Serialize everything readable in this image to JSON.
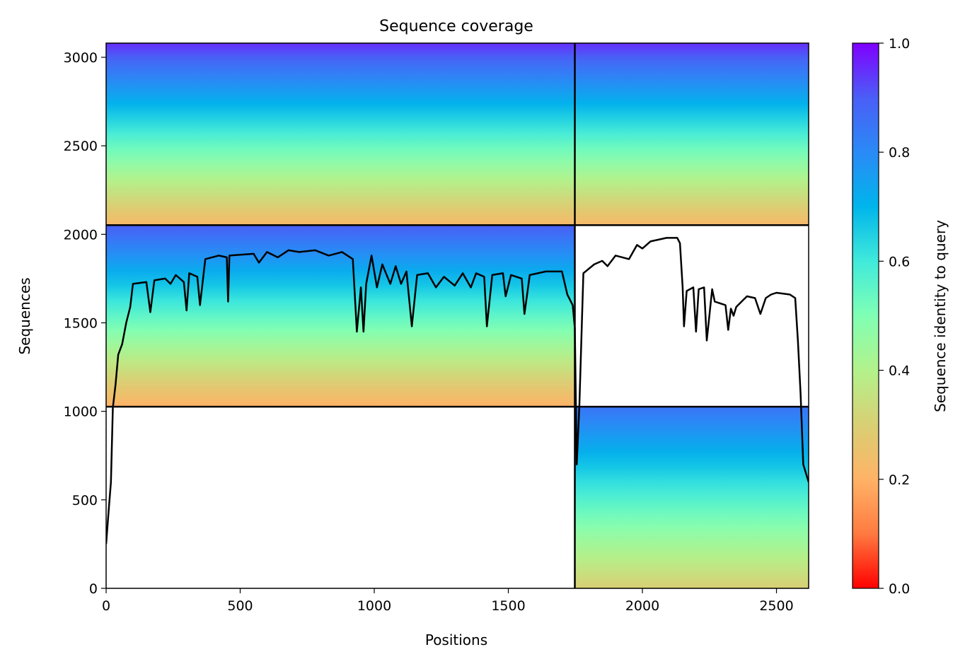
{
  "chart_data": {
    "type": "heatmap",
    "title": "Sequence coverage",
    "xlabel": "Positions",
    "ylabel": "Sequences",
    "xlim": [
      0,
      2620
    ],
    "ylim": [
      0,
      3080
    ],
    "xticks": [
      0,
      500,
      1000,
      1500,
      2000,
      2500
    ],
    "yticks": [
      0,
      500,
      1000,
      1500,
      2000,
      2500,
      3000
    ],
    "grid": false,
    "colorbar": {
      "label": "Sequence identity to query",
      "colormap": "rainbow_r",
      "range": [
        0.0,
        1.0
      ],
      "ticks": [
        "0.0",
        "0.2",
        "0.4",
        "0.6",
        "0.8",
        "1.0"
      ],
      "colors": [
        "#ff0000",
        "#ff7a40",
        "#ffb366",
        "#d9cf74",
        "#b3f28b",
        "#80ffb4",
        "#40eadb",
        "#00b5eb",
        "#2a8af6",
        "#4a5ef6",
        "#8000ff"
      ]
    },
    "chain_boundaries": {
      "positions": [
        1748
      ],
      "sequences": [
        1026,
        2052
      ]
    },
    "msa_blocks": [
      {
        "name": "chain-A-paired",
        "x": [
          0,
          1748
        ],
        "y": [
          2052,
          3080
        ],
        "identity_top": 0.95,
        "identity_bottom": 0.22
      },
      {
        "name": "chain-B-paired",
        "x": [
          1748,
          2620
        ],
        "y": [
          2052,
          3080
        ],
        "identity_top": 0.95,
        "identity_bottom": 0.22
      },
      {
        "name": "chain-A-unpaired",
        "x": [
          0,
          1748
        ],
        "y": [
          1026,
          2052
        ],
        "identity_top": 0.9,
        "identity_bottom": 0.2
      },
      {
        "name": "chain-B-unpaired",
        "x": [
          1748,
          2620
        ],
        "y": [
          0,
          1026
        ],
        "identity_top": 0.85,
        "identity_bottom": 0.3
      }
    ],
    "coverage_line": {
      "name": "coverage",
      "points": [
        [
          0,
          250
        ],
        [
          10,
          450
        ],
        [
          18,
          600
        ],
        [
          25,
          1020
        ],
        [
          35,
          1150
        ],
        [
          45,
          1320
        ],
        [
          60,
          1380
        ],
        [
          75,
          1500
        ],
        [
          90,
          1590
        ],
        [
          100,
          1720
        ],
        [
          150,
          1730
        ],
        [
          165,
          1560
        ],
        [
          180,
          1740
        ],
        [
          220,
          1750
        ],
        [
          240,
          1720
        ],
        [
          260,
          1770
        ],
        [
          290,
          1730
        ],
        [
          300,
          1570
        ],
        [
          310,
          1780
        ],
        [
          340,
          1760
        ],
        [
          350,
          1600
        ],
        [
          370,
          1860
        ],
        [
          420,
          1880
        ],
        [
          450,
          1870
        ],
        [
          455,
          1620
        ],
        [
          460,
          1880
        ],
        [
          550,
          1890
        ],
        [
          570,
          1840
        ],
        [
          600,
          1900
        ],
        [
          640,
          1870
        ],
        [
          680,
          1910
        ],
        [
          720,
          1900
        ],
        [
          780,
          1910
        ],
        [
          830,
          1880
        ],
        [
          880,
          1900
        ],
        [
          920,
          1860
        ],
        [
          935,
          1450
        ],
        [
          950,
          1700
        ],
        [
          960,
          1450
        ],
        [
          970,
          1720
        ],
        [
          990,
          1880
        ],
        [
          1010,
          1700
        ],
        [
          1030,
          1830
        ],
        [
          1060,
          1720
        ],
        [
          1080,
          1820
        ],
        [
          1100,
          1720
        ],
        [
          1120,
          1790
        ],
        [
          1140,
          1480
        ],
        [
          1160,
          1770
        ],
        [
          1200,
          1780
        ],
        [
          1230,
          1700
        ],
        [
          1260,
          1760
        ],
        [
          1300,
          1710
        ],
        [
          1330,
          1780
        ],
        [
          1360,
          1700
        ],
        [
          1380,
          1780
        ],
        [
          1410,
          1760
        ],
        [
          1420,
          1480
        ],
        [
          1440,
          1770
        ],
        [
          1480,
          1780
        ],
        [
          1490,
          1650
        ],
        [
          1510,
          1770
        ],
        [
          1550,
          1750
        ],
        [
          1560,
          1550
        ],
        [
          1580,
          1770
        ],
        [
          1640,
          1790
        ],
        [
          1700,
          1790
        ],
        [
          1720,
          1660
        ],
        [
          1740,
          1600
        ],
        [
          1748,
          1470
        ],
        [
          1755,
          700
        ],
        [
          1765,
          1030
        ],
        [
          1780,
          1780
        ],
        [
          1820,
          1830
        ],
        [
          1850,
          1850
        ],
        [
          1870,
          1820
        ],
        [
          1900,
          1880
        ],
        [
          1950,
          1860
        ],
        [
          1980,
          1940
        ],
        [
          2000,
          1920
        ],
        [
          2030,
          1960
        ],
        [
          2060,
          1970
        ],
        [
          2090,
          1980
        ],
        [
          2130,
          1980
        ],
        [
          2140,
          1950
        ],
        [
          2150,
          1700
        ],
        [
          2155,
          1480
        ],
        [
          2165,
          1680
        ],
        [
          2190,
          1700
        ],
        [
          2200,
          1450
        ],
        [
          2210,
          1690
        ],
        [
          2230,
          1700
        ],
        [
          2240,
          1400
        ],
        [
          2260,
          1690
        ],
        [
          2270,
          1620
        ],
        [
          2310,
          1600
        ],
        [
          2320,
          1460
        ],
        [
          2330,
          1580
        ],
        [
          2340,
          1540
        ],
        [
          2350,
          1590
        ],
        [
          2370,
          1620
        ],
        [
          2390,
          1650
        ],
        [
          2420,
          1640
        ],
        [
          2440,
          1550
        ],
        [
          2460,
          1640
        ],
        [
          2480,
          1660
        ],
        [
          2500,
          1670
        ],
        [
          2550,
          1660
        ],
        [
          2570,
          1640
        ],
        [
          2580,
          1400
        ],
        [
          2590,
          1100
        ],
        [
          2600,
          700
        ],
        [
          2610,
          650
        ],
        [
          2620,
          600
        ]
      ]
    }
  }
}
